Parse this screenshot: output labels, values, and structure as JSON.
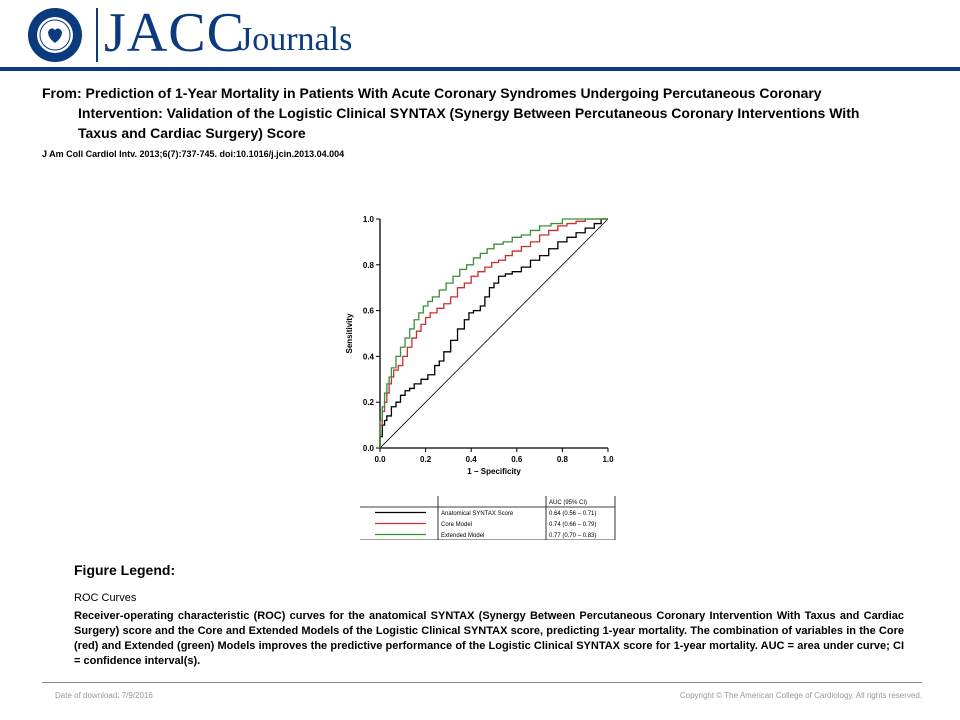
{
  "header": {
    "logo_wordmark": "JACC",
    "logo_subtitle": "Journals",
    "seal_text": "AMERICAN COLLEGE OF CARDIOLOGY"
  },
  "article": {
    "title": "From: Prediction of 1-Year Mortality in Patients With Acute Coronary Syndromes Undergoing Percutaneous Coronary Intervention: Validation of the Logistic Clinical SYNTAX (Synergy Between Percutaneous Coronary Interventions With Taxus and Cardiac Surgery) Score",
    "citation": "J Am Coll Cardiol Intv. 2013;6(7):737-745. doi:10.1016/j.jcin.2013.04.004"
  },
  "chart_data": {
    "type": "line",
    "xlabel": "1 − Specificity",
    "ylabel": "Sensitivity",
    "xlim": [
      0,
      1
    ],
    "ylim": [
      0,
      1
    ],
    "xticks": [
      "0.0",
      "0.2",
      "0.4",
      "0.6",
      "0.8",
      "1.0"
    ],
    "yticks": [
      "0.0",
      "0.2",
      "0.4",
      "0.6",
      "0.8",
      "1.0"
    ],
    "grid": false,
    "reference_line": [
      [
        0,
        0
      ],
      [
        1,
        1
      ]
    ],
    "series": [
      {
        "name": "Anatomical SYNTAX Score",
        "color": "#000000",
        "auc": "0.64 (0.56 – 0.71)",
        "points": [
          [
            0,
            0
          ],
          [
            0.01,
            0.05
          ],
          [
            0.02,
            0.1
          ],
          [
            0.03,
            0.12
          ],
          [
            0.05,
            0.14
          ],
          [
            0.07,
            0.18
          ],
          [
            0.09,
            0.2
          ],
          [
            0.11,
            0.23
          ],
          [
            0.13,
            0.25
          ],
          [
            0.15,
            0.26
          ],
          [
            0.18,
            0.28
          ],
          [
            0.21,
            0.3
          ],
          [
            0.24,
            0.32
          ],
          [
            0.26,
            0.36
          ],
          [
            0.28,
            0.38
          ],
          [
            0.31,
            0.42
          ],
          [
            0.34,
            0.47
          ],
          [
            0.37,
            0.52
          ],
          [
            0.39,
            0.56
          ],
          [
            0.41,
            0.59
          ],
          [
            0.44,
            0.6
          ],
          [
            0.46,
            0.62
          ],
          [
            0.48,
            0.66
          ],
          [
            0.5,
            0.7
          ],
          [
            0.52,
            0.72
          ],
          [
            0.55,
            0.75
          ],
          [
            0.58,
            0.76
          ],
          [
            0.62,
            0.77
          ],
          [
            0.66,
            0.79
          ],
          [
            0.7,
            0.82
          ],
          [
            0.74,
            0.84
          ],
          [
            0.78,
            0.87
          ],
          [
            0.82,
            0.9
          ],
          [
            0.86,
            0.92
          ],
          [
            0.9,
            0.94
          ],
          [
            0.94,
            0.96
          ],
          [
            0.97,
            0.98
          ],
          [
            1,
            1
          ]
        ]
      },
      {
        "name": "Core Model",
        "color": "#cc2e2e",
        "auc": "0.74 (0.66 – 0.79)",
        "points": [
          [
            0,
            0
          ],
          [
            0.01,
            0.1
          ],
          [
            0.02,
            0.16
          ],
          [
            0.03,
            0.2
          ],
          [
            0.04,
            0.24
          ],
          [
            0.05,
            0.28
          ],
          [
            0.06,
            0.31
          ],
          [
            0.08,
            0.34
          ],
          [
            0.1,
            0.36
          ],
          [
            0.12,
            0.4
          ],
          [
            0.14,
            0.44
          ],
          [
            0.16,
            0.48
          ],
          [
            0.18,
            0.51
          ],
          [
            0.2,
            0.54
          ],
          [
            0.22,
            0.57
          ],
          [
            0.25,
            0.59
          ],
          [
            0.28,
            0.61
          ],
          [
            0.31,
            0.63
          ],
          [
            0.34,
            0.66
          ],
          [
            0.37,
            0.7
          ],
          [
            0.4,
            0.72
          ],
          [
            0.43,
            0.75
          ],
          [
            0.46,
            0.77
          ],
          [
            0.49,
            0.79
          ],
          [
            0.52,
            0.81
          ],
          [
            0.55,
            0.82
          ],
          [
            0.58,
            0.84
          ],
          [
            0.62,
            0.86
          ],
          [
            0.66,
            0.88
          ],
          [
            0.7,
            0.9
          ],
          [
            0.74,
            0.93
          ],
          [
            0.78,
            0.95
          ],
          [
            0.82,
            0.97
          ],
          [
            0.86,
            0.98
          ],
          [
            0.9,
            0.99
          ],
          [
            0.95,
            1.0
          ],
          [
            1,
            1
          ]
        ]
      },
      {
        "name": "Extended Model",
        "color": "#3a8f3a",
        "auc": "0.77 (0.70 – 0.83)",
        "points": [
          [
            0,
            0
          ],
          [
            0.01,
            0.12
          ],
          [
            0.02,
            0.18
          ],
          [
            0.03,
            0.24
          ],
          [
            0.04,
            0.28
          ],
          [
            0.05,
            0.31
          ],
          [
            0.07,
            0.35
          ],
          [
            0.09,
            0.4
          ],
          [
            0.11,
            0.44
          ],
          [
            0.13,
            0.48
          ],
          [
            0.15,
            0.52
          ],
          [
            0.17,
            0.56
          ],
          [
            0.19,
            0.59
          ],
          [
            0.21,
            0.62
          ],
          [
            0.23,
            0.64
          ],
          [
            0.26,
            0.66
          ],
          [
            0.29,
            0.69
          ],
          [
            0.32,
            0.72
          ],
          [
            0.35,
            0.75
          ],
          [
            0.38,
            0.78
          ],
          [
            0.41,
            0.8
          ],
          [
            0.44,
            0.83
          ],
          [
            0.47,
            0.85
          ],
          [
            0.5,
            0.87
          ],
          [
            0.54,
            0.89
          ],
          [
            0.58,
            0.9
          ],
          [
            0.62,
            0.92
          ],
          [
            0.66,
            0.93
          ],
          [
            0.7,
            0.95
          ],
          [
            0.75,
            0.97
          ],
          [
            0.8,
            0.98
          ],
          [
            0.86,
            1.0
          ],
          [
            1,
            1
          ]
        ]
      }
    ],
    "legend_table": {
      "header": "AUC (95% CI)",
      "rows": [
        {
          "name": "Anatomical SYNTAX Score",
          "auc": "0.64 (0.56 – 0.71)",
          "color": "#000000"
        },
        {
          "name": "Core Model",
          "auc": "0.74 (0.66 – 0.79)",
          "color": "#cc2e2e"
        },
        {
          "name": "Extended Model",
          "auc": "0.77 (0.70 – 0.83)",
          "color": "#3a8f3a"
        }
      ]
    }
  },
  "legend": {
    "heading": "Figure Legend:",
    "subtitle": "ROC Curves",
    "text": "Receiver-operating characteristic (ROC) curves for the anatomical SYNTAX (Synergy Between Percutaneous Coronary Intervention With Taxus and Cardiac Surgery) score and the Core and Extended Models of the Logistic Clinical SYNTAX score, predicting 1-year mortality. The combination of variables in the Core (red) and Extended (green) Models improves the predictive performance of the Logistic Clinical SYNTAX score for 1-year mortality. AUC = area under curve; CI = confidence interval(s)."
  },
  "footer": {
    "download_date": "Date of download: 7/9/2016",
    "copyright": "Copyright © The American College of Cardiology. All rights reserved."
  },
  "colors": {
    "brand": "#0b3a7e"
  }
}
